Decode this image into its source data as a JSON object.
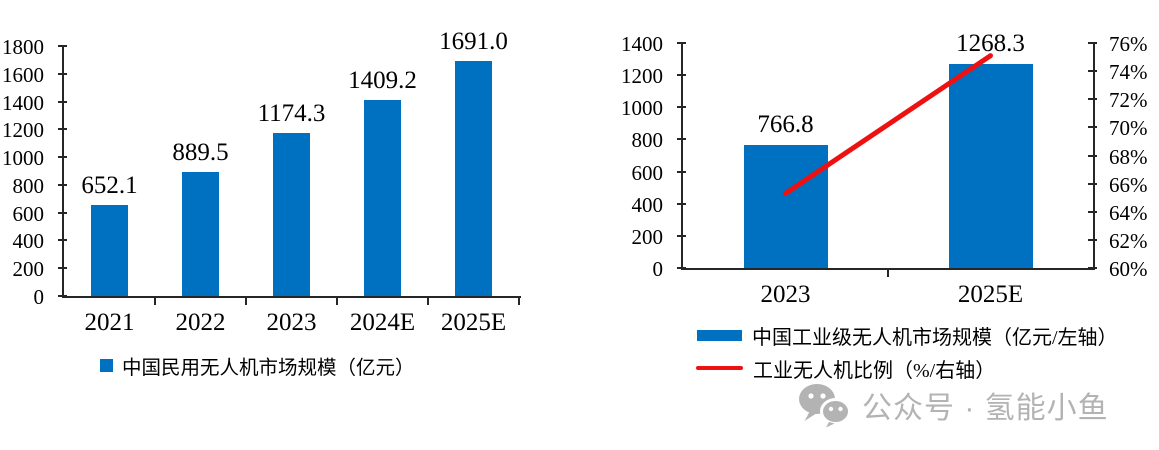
{
  "watermark": {
    "label": "公众号 · 氢能小鱼",
    "color": "#b3b3b3"
  },
  "colors": {
    "bar_blue": "#0070C0",
    "line_red": "#ED1111",
    "axis": "#262626",
    "text": "#000000"
  },
  "chart_data": [
    {
      "type": "bar",
      "title": "",
      "xlabel": "",
      "ylabel": "",
      "categories": [
        "2021",
        "2022",
        "2023",
        "2024E",
        "2025E"
      ],
      "values": [
        652.1,
        889.5,
        1174.3,
        1409.2,
        1691.0
      ],
      "data_labels": [
        "652.1",
        "889.5",
        "1174.3",
        "1409.2",
        "1691.0"
      ],
      "ylim": [
        0,
        1800
      ],
      "ytick_step": 200,
      "grid": false,
      "legend": "中国民用无人机市场规模（亿元）",
      "legend_position": "bottom",
      "bar_color": "#0070C0"
    },
    {
      "type": "bar+line",
      "title": "",
      "xlabel": "",
      "ylabel": "",
      "categories": [
        "2023",
        "2025E"
      ],
      "series": [
        {
          "name": "中国工业级无人机市场规模（亿元/左轴）",
          "type": "bar",
          "axis": "left",
          "values": [
            766.8,
            1268.3
          ],
          "data_labels": [
            "766.8",
            "1268.3"
          ],
          "color": "#0070C0"
        },
        {
          "name": "工业无人机比例（%/右轴）",
          "type": "line",
          "axis": "right",
          "values": [
            65.3,
            75.1
          ],
          "color": "#ED1111"
        }
      ],
      "ylim": [
        0,
        1400
      ],
      "ytick_step": 200,
      "y2lim": [
        60,
        76
      ],
      "y2tick_step": 2,
      "y2format": "percent",
      "grid": false,
      "legend_position": "bottom"
    }
  ]
}
